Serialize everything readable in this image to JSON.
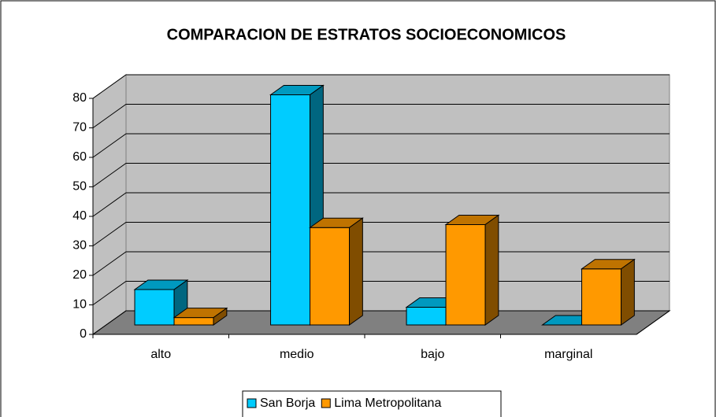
{
  "chart_data": {
    "type": "bar",
    "title": "COMPARACION DE ESTRATOS SOCIOECONOMICOS",
    "categories": [
      "alto",
      "medio",
      "bajo",
      "marginal"
    ],
    "series": [
      {
        "name": "San Borja",
        "color": "#00ccff",
        "values": [
          12,
          78,
          6,
          0
        ]
      },
      {
        "name": "Lima Metropolitana",
        "color": "#ff9900",
        "values": [
          2.5,
          33,
          34,
          19
        ]
      }
    ],
    "ylim": [
      0,
      80
    ],
    "yticks": [
      0,
      10,
      20,
      30,
      40,
      50,
      60,
      70,
      80
    ],
    "grid": true,
    "legend": "bottom"
  }
}
